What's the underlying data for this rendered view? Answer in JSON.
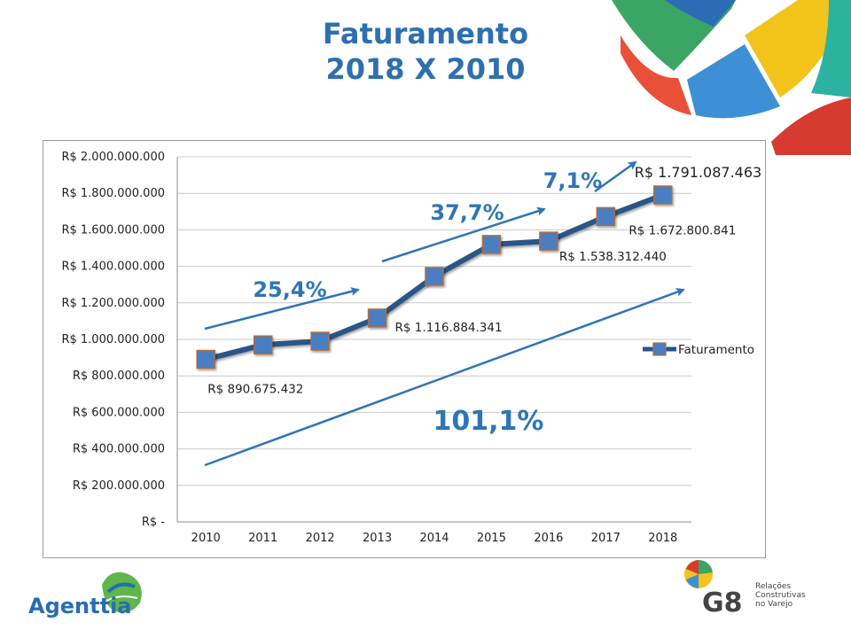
{
  "slide": {
    "title_line1": "Faturamento",
    "title_line2": "2018 X 2010"
  },
  "chart_data": {
    "type": "line",
    "categories": [
      "2010",
      "2011",
      "2012",
      "2013",
      "2014",
      "2015",
      "2016",
      "2017",
      "2018"
    ],
    "series": [
      {
        "name": "Faturamento",
        "values": [
          890675432,
          970000000,
          990000000,
          1116884341,
          1345000000,
          1520000000,
          1538312440,
          1672800841,
          1791087463
        ]
      }
    ],
    "ylim": [
      0,
      2000000000
    ],
    "y_ticks": [
      "R$ -",
      "R$ 200.000.000",
      "R$ 400.000.000",
      "R$ 600.000.000",
      "R$ 800.000.000",
      "R$ 1.000.000.000",
      "R$ 1.200.000.000",
      "R$ 1.400.000.000",
      "R$ 1.600.000.000",
      "R$ 1.800.000.000",
      "R$ 2.000.000.000"
    ],
    "y_tick_values": [
      0,
      200000000,
      400000000,
      600000000,
      800000000,
      1000000000,
      1200000000,
      1400000000,
      1600000000,
      1800000000,
      2000000000
    ],
    "grid": true,
    "legend_position": "right",
    "point_labels": [
      {
        "index": 0,
        "text": "R$ 890.675.432"
      },
      {
        "index": 3,
        "text": "R$ 1.116.884.341"
      },
      {
        "index": 6,
        "text": "R$ 1.538.312.440"
      },
      {
        "index": 7,
        "text": "R$ 1.672.800.841"
      },
      {
        "index": 8,
        "text": "R$ 1.791.087.463"
      }
    ],
    "growth_annotations": [
      "25,4%",
      "37,7%",
      "7,1%",
      "101,1%"
    ],
    "colors": {
      "line": "#2b5587",
      "marker_fill": "#4a7ec2",
      "marker_border": "#b06d3a",
      "arrow": "#2e75b6",
      "annotation_text": "#2e75b6"
    }
  },
  "branding": {
    "left_logo_text": "Agenttia",
    "right_logo_mark": "G8",
    "right_logo_tagline_1": "Relações",
    "right_logo_tagline_2": "Construtivas",
    "right_logo_tagline_3": "no Varejo"
  }
}
